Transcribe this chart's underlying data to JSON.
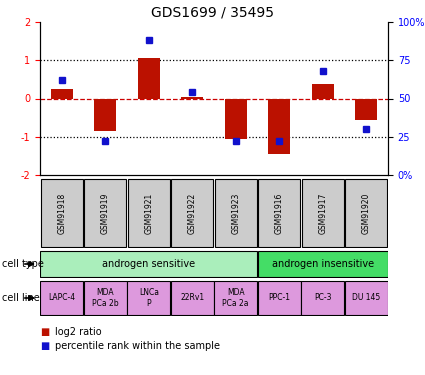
{
  "title": "GDS1699 / 35495",
  "samples": [
    "GSM91918",
    "GSM91919",
    "GSM91921",
    "GSM91922",
    "GSM91923",
    "GSM91916",
    "GSM91917",
    "GSM91920"
  ],
  "log2_ratio": [
    0.25,
    -0.85,
    1.05,
    0.05,
    -1.05,
    -1.45,
    0.38,
    -0.55
  ],
  "pct_rank_scaled": [
    62,
    22,
    88,
    54,
    22,
    22,
    68,
    30
  ],
  "bar_color": "#bb1100",
  "dot_color": "#1111cc",
  "cell_type_groups": [
    {
      "label": "androgen sensitive",
      "start": 0,
      "end": 5,
      "color": "#aaeebb"
    },
    {
      "label": "androgen insensitive",
      "start": 5,
      "end": 8,
      "color": "#44dd66"
    }
  ],
  "cell_lines": [
    {
      "label": "LAPC-4",
      "start": 0,
      "end": 1
    },
    {
      "label": "MDA\nPCa 2b",
      "start": 1,
      "end": 2
    },
    {
      "label": "LNCa\nP",
      "start": 2,
      "end": 3
    },
    {
      "label": "22Rv1",
      "start": 3,
      "end": 4
    },
    {
      "label": "MDA\nPCa 2a",
      "start": 4,
      "end": 5
    },
    {
      "label": "PPC-1",
      "start": 5,
      "end": 6
    },
    {
      "label": "PC-3",
      "start": 6,
      "end": 7
    },
    {
      "label": "DU 145",
      "start": 7,
      "end": 8
    }
  ],
  "cell_line_color": "#dd99dd",
  "sample_box_color": "#cccccc",
  "ylim": [
    -2,
    2
  ],
  "yticks_left": [
    -2,
    -1,
    0,
    1,
    2
  ],
  "dotted_line_color": "#000000",
  "zero_line_color": "#cc0000",
  "legend_log2_color": "#bb1100",
  "legend_pct_color": "#1111cc",
  "fig_width": 4.25,
  "fig_height": 3.75,
  "dpi": 100
}
